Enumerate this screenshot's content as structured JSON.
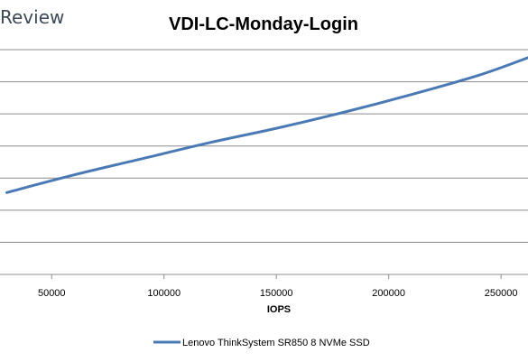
{
  "brand": {
    "text": "Review"
  },
  "chart_data": {
    "type": "line",
    "title": "VDI-LC-Monday-Login",
    "xlabel": "IOPS",
    "ylabel": "",
    "xlim": [
      27000,
      262000
    ],
    "ylim": [
      0,
      7
    ],
    "x_ticks": [
      50000,
      100000,
      150000,
      200000,
      250000
    ],
    "x_tick_labels": [
      "50000",
      "100000",
      "150000",
      "200000",
      "250000"
    ],
    "y_gridlines": [
      0,
      1,
      2,
      3,
      4,
      5,
      6,
      7
    ],
    "grid": true,
    "legend_position": "bottom",
    "series": [
      {
        "name": "Lenovo ThinkSystem SR850 8 NVMe SSD",
        "color": "#4a7ab5",
        "x": [
          30000,
          60000,
          90000,
          120000,
          150000,
          180000,
          210000,
          240000,
          262000
        ],
        "y": [
          2.55,
          3.1,
          3.6,
          4.1,
          4.55,
          5.05,
          5.6,
          6.2,
          6.75
        ]
      }
    ]
  }
}
